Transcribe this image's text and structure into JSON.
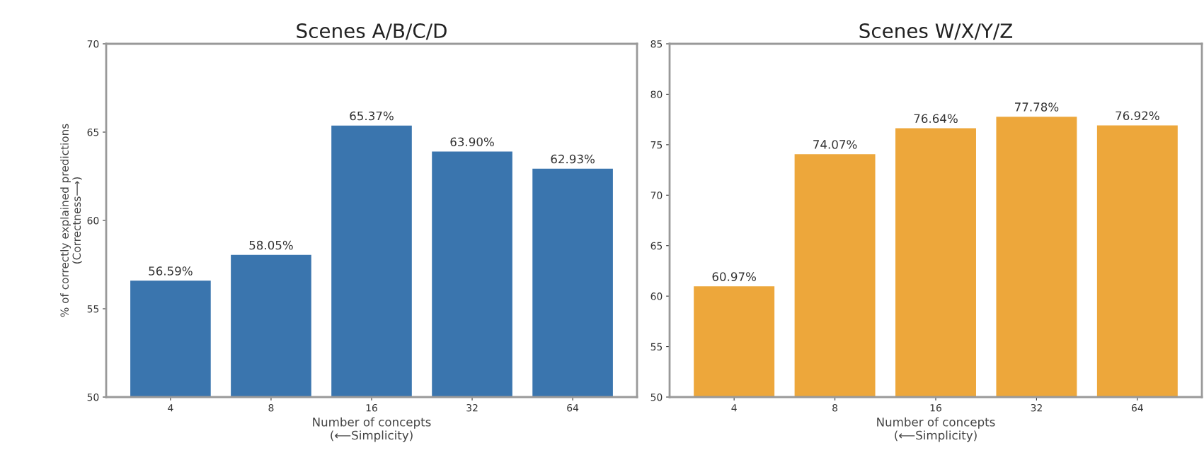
{
  "chart_data": [
    {
      "type": "bar",
      "title": "Scenes A/B/C/D",
      "xlabel": "Number of concepts\n(⟵Simplicity)",
      "ylabel": "% of correctly explained predictions\n(Correctness⟶)",
      "categories": [
        "4",
        "8",
        "16",
        "32",
        "64"
      ],
      "series": [
        {
          "color": "#3a75ae",
          "values": [
            56.59,
            58.05,
            65.37,
            63.9,
            62.93
          ],
          "value_labels": [
            "56.59%",
            "58.05%",
            "65.37%",
            "63.90%",
            "62.93%"
          ]
        }
      ],
      "ylim": [
        50,
        70
      ],
      "yticks": [
        50,
        55,
        60,
        65,
        70
      ],
      "grid": false,
      "legend": false
    },
    {
      "type": "bar",
      "title": "Scenes W/X/Y/Z",
      "xlabel": "Number of concepts\n(⟵Simplicity)",
      "categories": [
        "4",
        "8",
        "16",
        "32",
        "64"
      ],
      "series": [
        {
          "color": "#eda73b",
          "values": [
            60.97,
            74.07,
            76.64,
            77.78,
            76.92
          ],
          "value_labels": [
            "60.97%",
            "74.07%",
            "76.64%",
            "77.78%",
            "76.92%"
          ]
        }
      ],
      "ylim": [
        50,
        85
      ],
      "yticks": [
        50,
        55,
        60,
        65,
        70,
        75,
        80,
        85
      ],
      "grid": false,
      "legend": false
    }
  ]
}
